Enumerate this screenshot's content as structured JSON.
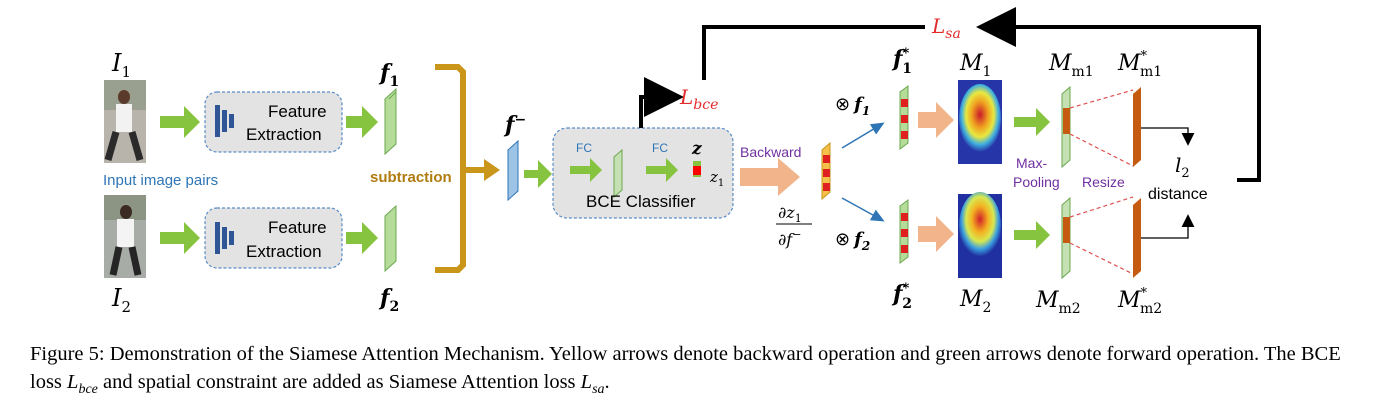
{
  "labels": {
    "i1": "I",
    "i1_sub": "1",
    "i2": "I",
    "i2_sub": "2",
    "input_pairs": "Input image pairs",
    "feature": "Feature",
    "extraction": "Extraction",
    "f1": "f",
    "f1_sub": "1",
    "f2": "f",
    "f2_sub": "2",
    "subtraction": "subtraction",
    "f_minus": "f",
    "f_minus_sup": "−",
    "fc": "FC",
    "z": "z",
    "z1": "z",
    "z1_sub": "1",
    "bce_classifier": "BCE Classifier",
    "l_bce": "L",
    "l_bce_sub": "bce",
    "l_sa": "L",
    "l_sa_sub": "sa",
    "backward": "Backward",
    "grad_num": "∂z",
    "grad_num_sub": "1",
    "grad_den": "∂f",
    "grad_den_sup": "−",
    "otimes": "⊗",
    "f1_star": "f",
    "f1_star_sub": "1",
    "f2_star": "f",
    "f2_star_sub": "2",
    "star": "*",
    "m1": "M",
    "m1_sub": "1",
    "m2": "M",
    "m2_sub": "2",
    "mm1": "M",
    "mm1_sub": "m1",
    "mm2": "M",
    "mm2_sub": "m2",
    "mm1s": "M",
    "mm1s_sub": "m1",
    "mm2s": "M",
    "mm2s_sub": "m2",
    "max": "Max-",
    "pooling": "Pooling",
    "resize": "Resize",
    "l2": "l",
    "l2_sub": "2",
    "distance": "distance"
  },
  "caption": {
    "part1": "Figure 5: Demonstration of the Siamese Attention Mechanism. Yellow arrows denote backward operation and green arrows denote forward operation. The BCE loss ",
    "lbce_L": "L",
    "lbce_sub": "bce",
    "part2": " and spatial constraint are added as Siamese Attention loss ",
    "lsa_L": "L",
    "lsa_sub": "sa",
    "part3": "."
  },
  "colors": {
    "green_arrow": "#86c440",
    "orange_arrow": "#f2b48a",
    "bracket": "#c9961a",
    "loss_red": "#e32b2b",
    "purple": "#7030a0",
    "blue_text": "#2e75b6",
    "feature_box": "#e3e3e3",
    "dark_bar": "#2f5597",
    "brown_bar": "#c55a11"
  }
}
